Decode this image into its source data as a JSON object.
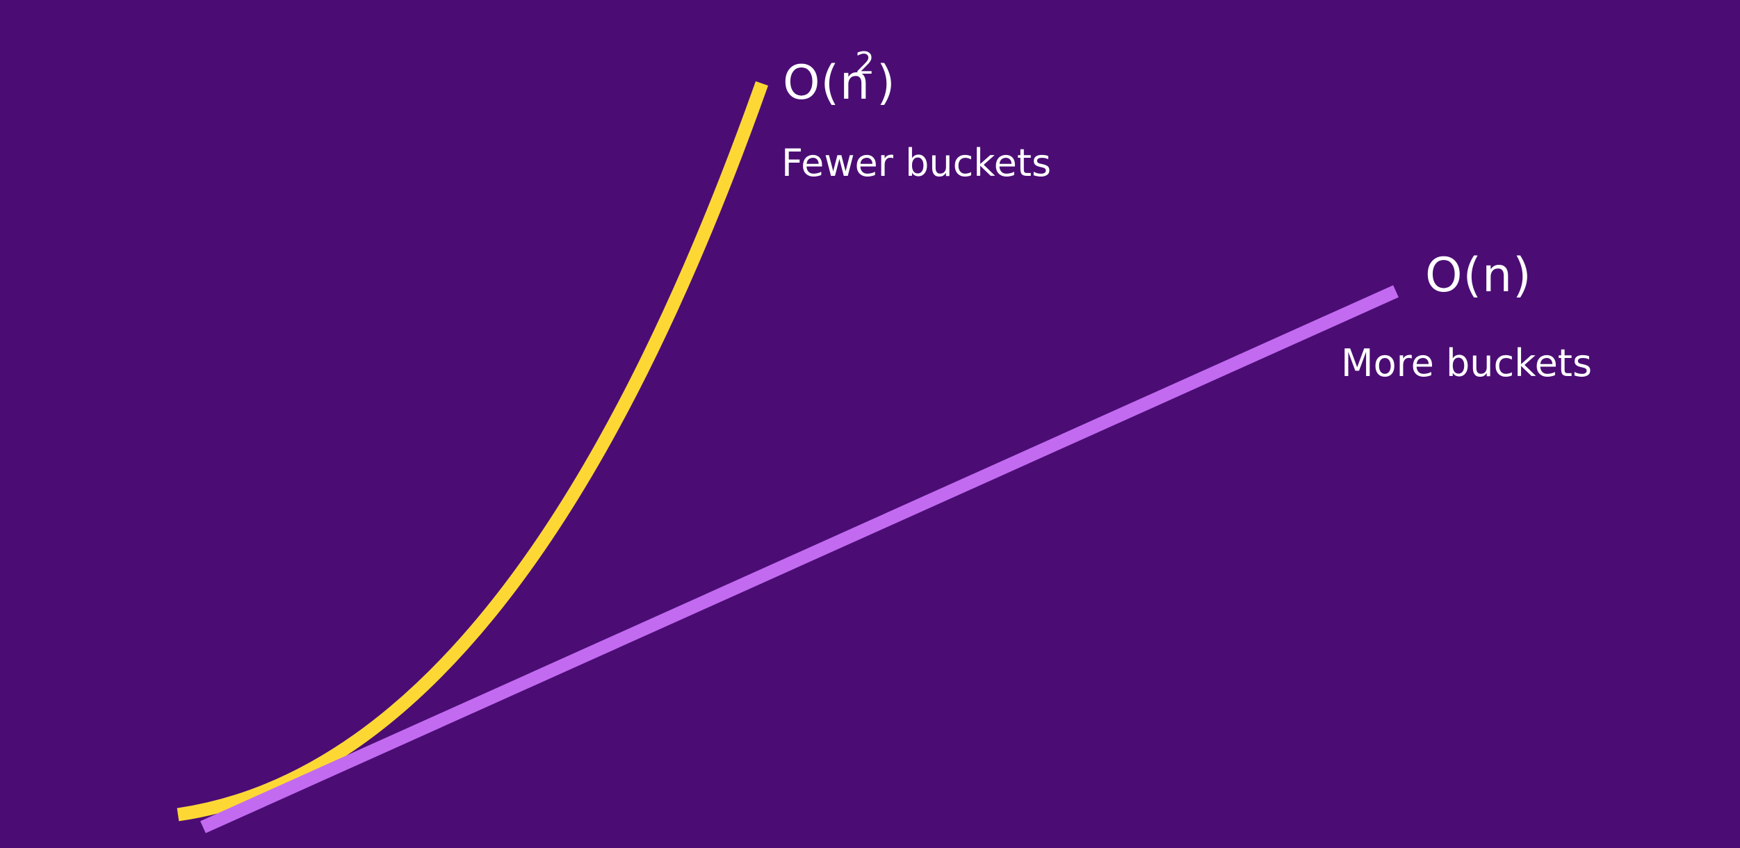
{
  "curves": [
    {
      "shape": "quadratic",
      "color": "#fdd835",
      "complexity": {
        "prefix": "O(n",
        "superscript": "2",
        "suffix": ")"
      },
      "description": "Fewer buckets"
    },
    {
      "shape": "linear",
      "color": "#c26bf0",
      "complexity": {
        "text": "O(n)"
      },
      "description": "More buckets"
    }
  ],
  "background_color": "#4b0d74"
}
